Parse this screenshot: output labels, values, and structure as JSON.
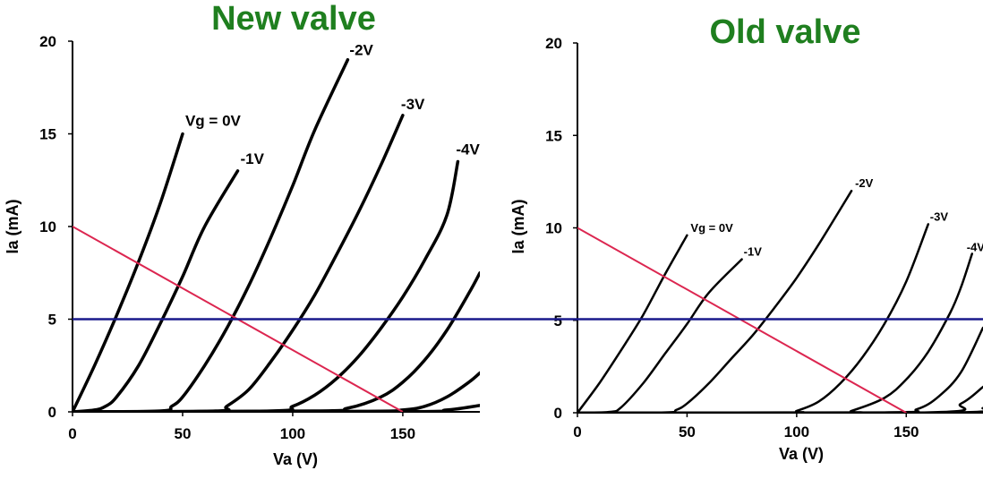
{
  "colors": {
    "title": "#1f7f1f",
    "curve": "#000000",
    "load_line": "#dc2650",
    "reference_line": "#1a1a8c",
    "axis": "#000000"
  },
  "chart_data": [
    {
      "type": "line",
      "title": "New valve",
      "xlabel": "Va (V)",
      "ylabel": "Ia (mA)",
      "xlim": [
        0,
        185
      ],
      "ylim": [
        0,
        20
      ],
      "xticks": [
        "0",
        "50",
        "100",
        "150"
      ],
      "yticks": [
        "0",
        "5",
        "10",
        "15",
        "20"
      ],
      "grid": false,
      "series": [
        {
          "name": "Vg = 0V",
          "label_position": "end",
          "points": [
            [
              0,
              0
            ],
            [
              10,
              2.5
            ],
            [
              20,
              5.2
            ],
            [
              30,
              8.1
            ],
            [
              40,
              11.3
            ],
            [
              50,
              15
            ]
          ]
        },
        {
          "name": "-1V",
          "label_position": "end",
          "points": [
            [
              0,
              0
            ],
            [
              10,
              0.1
            ],
            [
              15,
              0.3
            ],
            [
              20,
              0.8
            ],
            [
              30,
              2.5
            ],
            [
              40,
              4.8
            ],
            [
              50,
              7.3
            ],
            [
              60,
              10
            ],
            [
              75,
              13
            ]
          ]
        },
        {
          "name": "-2V",
          "label_position": "end",
          "points": [
            [
              0,
              0
            ],
            [
              40,
              0.05
            ],
            [
              45,
              0.3
            ],
            [
              50,
              0.8
            ],
            [
              60,
              2.5
            ],
            [
              70,
              4.5
            ],
            [
              80,
              6.8
            ],
            [
              90,
              9.4
            ],
            [
              100,
              12.2
            ],
            [
              110,
              15.2
            ],
            [
              125,
              19
            ]
          ]
        },
        {
          "name": "-3V",
          "label_position": "end",
          "points": [
            [
              0,
              0
            ],
            [
              65,
              0.05
            ],
            [
              70,
              0.3
            ],
            [
              80,
              1.2
            ],
            [
              90,
              2.7
            ],
            [
              100,
              4.4
            ],
            [
              110,
              6.3
            ],
            [
              120,
              8.5
            ],
            [
              130,
              10.8
            ],
            [
              140,
              13.3
            ],
            [
              150,
              16
            ]
          ]
        },
        {
          "name": "-4V",
          "label_position": "end",
          "points": [
            [
              0,
              0
            ],
            [
              90,
              0.05
            ],
            [
              100,
              0.3
            ],
            [
              110,
              0.9
            ],
            [
              120,
              1.8
            ],
            [
              130,
              3
            ],
            [
              140,
              4.5
            ],
            [
              150,
              6.2
            ],
            [
              160,
              8.2
            ],
            [
              170,
              10.6
            ],
            [
              175,
              13.5
            ]
          ]
        },
        {
          "name": "",
          "points": [
            [
              0,
              0
            ],
            [
              110,
              0.05
            ],
            [
              125,
              0.2
            ],
            [
              140,
              0.8
            ],
            [
              150,
              1.6
            ],
            [
              160,
              2.8
            ],
            [
              170,
              4.4
            ],
            [
              180,
              6.4
            ],
            [
              185,
              7.5
            ]
          ]
        },
        {
          "name": "",
          "points": [
            [
              0,
              0
            ],
            [
              130,
              0.03
            ],
            [
              150,
              0.1
            ],
            [
              160,
              0.3
            ],
            [
              170,
              0.8
            ],
            [
              180,
              1.6
            ],
            [
              185,
              2.1
            ]
          ]
        },
        {
          "name": "",
          "points": [
            [
              0,
              0
            ],
            [
              150,
              0.01
            ],
            [
              170,
              0.1
            ],
            [
              185,
              0.35
            ]
          ]
        }
      ],
      "load_line": {
        "points": [
          [
            0,
            10
          ],
          [
            150,
            0
          ]
        ]
      },
      "reference_line": {
        "y": 5
      }
    },
    {
      "type": "line",
      "title": "Old valve",
      "xlabel": "Va (V)",
      "ylabel": "Ia (mA)",
      "xlim": [
        0,
        185
      ],
      "ylim": [
        0,
        20
      ],
      "xticks": [
        "0",
        "50",
        "100",
        "150"
      ],
      "yticks": [
        "0",
        "5",
        "10",
        "15",
        "20"
      ],
      "grid": false,
      "series": [
        {
          "name": "Vg = 0V",
          "label_position": "end",
          "points": [
            [
              0,
              0
            ],
            [
              10,
              1.6
            ],
            [
              20,
              3.4
            ],
            [
              30,
              5.3
            ],
            [
              40,
              7.5
            ],
            [
              50,
              9.6
            ]
          ]
        },
        {
          "name": "-1V",
          "label_position": "end",
          "points": [
            [
              0,
              0
            ],
            [
              15,
              0.05
            ],
            [
              20,
              0.3
            ],
            [
              30,
              1.6
            ],
            [
              40,
              3.2
            ],
            [
              50,
              4.8
            ],
            [
              60,
              6.5
            ],
            [
              75,
              8.3
            ]
          ]
        },
        {
          "name": "-2V",
          "label_position": "end",
          "points": [
            [
              0,
              0
            ],
            [
              40,
              0.02
            ],
            [
              45,
              0.15
            ],
            [
              50,
              0.5
            ],
            [
              60,
              1.6
            ],
            [
              70,
              2.9
            ],
            [
              80,
              4.2
            ],
            [
              90,
              5.7
            ],
            [
              100,
              7.3
            ],
            [
              110,
              9.1
            ],
            [
              125,
              12
            ]
          ]
        },
        {
          "name": "-3V",
          "label_position": "end",
          "points": [
            [
              0,
              0
            ],
            [
              95,
              0.02
            ],
            [
              100,
              0.1
            ],
            [
              110,
              0.6
            ],
            [
              120,
              1.6
            ],
            [
              130,
              3
            ],
            [
              140,
              4.8
            ],
            [
              150,
              7.1
            ],
            [
              160,
              10.2
            ]
          ]
        },
        {
          "name": "-4V",
          "label_position": "end",
          "points": [
            [
              0,
              0
            ],
            [
              120,
              0.02
            ],
            [
              125,
              0.1
            ],
            [
              140,
              0.8
            ],
            [
              150,
              1.8
            ],
            [
              160,
              3.3
            ],
            [
              170,
              5.4
            ],
            [
              175,
              6.8
            ],
            [
              180,
              8.6
            ]
          ]
        },
        {
          "name": "",
          "points": [
            [
              0,
              0
            ],
            [
              140,
              0.02
            ],
            [
              155,
              0.2
            ],
            [
              165,
              0.9
            ],
            [
              175,
              2.2
            ],
            [
              185,
              4.6
            ]
          ]
        },
        {
          "name": "",
          "points": [
            [
              0,
              0
            ],
            [
              160,
              0.02
            ],
            [
              175,
              0.5
            ],
            [
              185,
              1.4
            ]
          ]
        },
        {
          "name": "",
          "points": [
            [
              0,
              0
            ],
            [
              170,
              0.02
            ],
            [
              185,
              0.25
            ]
          ]
        }
      ],
      "load_line": {
        "points": [
          [
            0,
            10
          ],
          [
            150,
            0
          ]
        ]
      },
      "reference_line": {
        "y": 5
      }
    }
  ]
}
